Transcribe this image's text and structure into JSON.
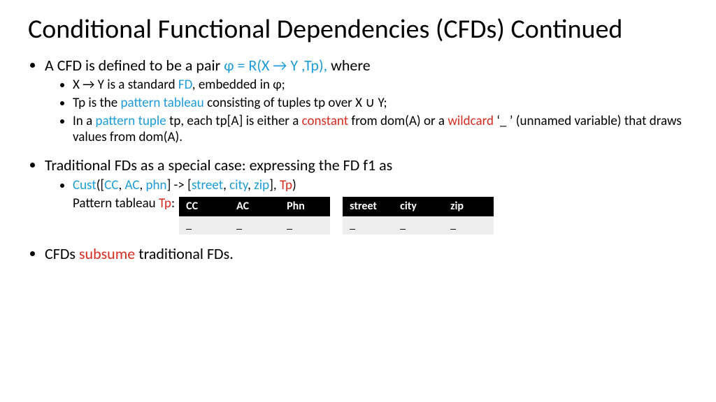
{
  "title": "Conditional Functional Dependencies (CFDs) Continued",
  "bullet1": {
    "pre": "A CFD is defined to be a pair ",
    "formula": "φ = R(X → Y ,Tp),",
    "post": " where",
    "sub1": {
      "a": "X → Y is a standard ",
      "b": "FD",
      "c": ", embedded in φ;"
    },
    "sub2": {
      "a": "Tp is the ",
      "b": "pattern tableau",
      "c": " consisting of tuples tp over X ∪ Y;"
    },
    "sub3": {
      "a": "In a ",
      "b": "pattern tuple",
      "c": " tp, each tp[A] is either a ",
      "d": "constant",
      "e": " from dom(A) or a ",
      "f": "wildcard",
      "g": "   ‘_ ’ (unnamed variable) that draws values from dom(A)."
    }
  },
  "bullet2": {
    "text": "Traditional FDs as a special case: expressing the FD f1 as",
    "sub1": {
      "a": " Cust",
      "b": "([",
      "c": "CC",
      "d": ", ",
      "e": "AC",
      "f": ", ",
      "g": "phn",
      "h": "]    -> [",
      "i": "street",
      "j": ", ",
      "k": "city",
      "l": ", ",
      "m": "zip",
      "n": "], ",
      "o": "Tp",
      "p": ")"
    },
    "sub2": {
      "a": "Pattern tableau ",
      "b": "Tp",
      "c": ":"
    }
  },
  "bullet3": {
    "a": "CFDs ",
    "b": "subsume",
    "c": " traditional FDs."
  },
  "table_left": {
    "headers": [
      "CC",
      "AC",
      "Phn"
    ],
    "row": [
      "_",
      "_",
      "_"
    ]
  },
  "table_right": {
    "headers": [
      "street",
      "city",
      "zip"
    ],
    "row": [
      "_",
      "_",
      "_"
    ]
  }
}
